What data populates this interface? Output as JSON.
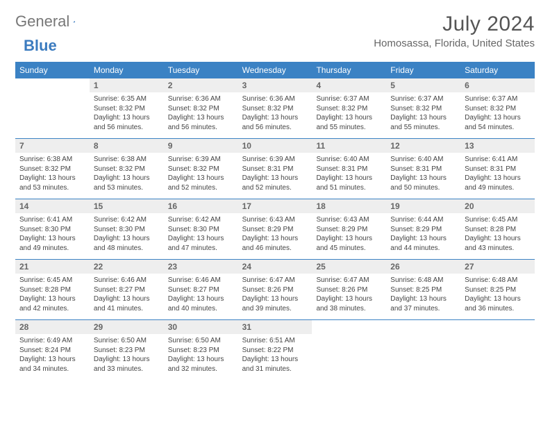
{
  "logo": {
    "general": "General",
    "blue": "Blue"
  },
  "header": {
    "title": "July 2024",
    "subtitle": "Homosassa, Florida, United States"
  },
  "colors": {
    "header_bg": "#3b82c4",
    "header_text": "#ffffff",
    "daynum_bg": "#eeeeee",
    "body_text": "#444444",
    "rule": "#3b82c4"
  },
  "layout": {
    "columns": 7,
    "rows": 5
  },
  "weekdays": [
    "Sunday",
    "Monday",
    "Tuesday",
    "Wednesday",
    "Thursday",
    "Friday",
    "Saturday"
  ],
  "days": [
    {
      "n": "",
      "empty": true
    },
    {
      "n": "1",
      "sunrise": "Sunrise: 6:35 AM",
      "sunset": "Sunset: 8:32 PM",
      "d1": "Daylight: 13 hours",
      "d2": "and 56 minutes."
    },
    {
      "n": "2",
      "sunrise": "Sunrise: 6:36 AM",
      "sunset": "Sunset: 8:32 PM",
      "d1": "Daylight: 13 hours",
      "d2": "and 56 minutes."
    },
    {
      "n": "3",
      "sunrise": "Sunrise: 6:36 AM",
      "sunset": "Sunset: 8:32 PM",
      "d1": "Daylight: 13 hours",
      "d2": "and 56 minutes."
    },
    {
      "n": "4",
      "sunrise": "Sunrise: 6:37 AM",
      "sunset": "Sunset: 8:32 PM",
      "d1": "Daylight: 13 hours",
      "d2": "and 55 minutes."
    },
    {
      "n": "5",
      "sunrise": "Sunrise: 6:37 AM",
      "sunset": "Sunset: 8:32 PM",
      "d1": "Daylight: 13 hours",
      "d2": "and 55 minutes."
    },
    {
      "n": "6",
      "sunrise": "Sunrise: 6:37 AM",
      "sunset": "Sunset: 8:32 PM",
      "d1": "Daylight: 13 hours",
      "d2": "and 54 minutes."
    },
    {
      "n": "7",
      "sunrise": "Sunrise: 6:38 AM",
      "sunset": "Sunset: 8:32 PM",
      "d1": "Daylight: 13 hours",
      "d2": "and 53 minutes."
    },
    {
      "n": "8",
      "sunrise": "Sunrise: 6:38 AM",
      "sunset": "Sunset: 8:32 PM",
      "d1": "Daylight: 13 hours",
      "d2": "and 53 minutes."
    },
    {
      "n": "9",
      "sunrise": "Sunrise: 6:39 AM",
      "sunset": "Sunset: 8:32 PM",
      "d1": "Daylight: 13 hours",
      "d2": "and 52 minutes."
    },
    {
      "n": "10",
      "sunrise": "Sunrise: 6:39 AM",
      "sunset": "Sunset: 8:31 PM",
      "d1": "Daylight: 13 hours",
      "d2": "and 52 minutes."
    },
    {
      "n": "11",
      "sunrise": "Sunrise: 6:40 AM",
      "sunset": "Sunset: 8:31 PM",
      "d1": "Daylight: 13 hours",
      "d2": "and 51 minutes."
    },
    {
      "n": "12",
      "sunrise": "Sunrise: 6:40 AM",
      "sunset": "Sunset: 8:31 PM",
      "d1": "Daylight: 13 hours",
      "d2": "and 50 minutes."
    },
    {
      "n": "13",
      "sunrise": "Sunrise: 6:41 AM",
      "sunset": "Sunset: 8:31 PM",
      "d1": "Daylight: 13 hours",
      "d2": "and 49 minutes."
    },
    {
      "n": "14",
      "sunrise": "Sunrise: 6:41 AM",
      "sunset": "Sunset: 8:30 PM",
      "d1": "Daylight: 13 hours",
      "d2": "and 49 minutes."
    },
    {
      "n": "15",
      "sunrise": "Sunrise: 6:42 AM",
      "sunset": "Sunset: 8:30 PM",
      "d1": "Daylight: 13 hours",
      "d2": "and 48 minutes."
    },
    {
      "n": "16",
      "sunrise": "Sunrise: 6:42 AM",
      "sunset": "Sunset: 8:30 PM",
      "d1": "Daylight: 13 hours",
      "d2": "and 47 minutes."
    },
    {
      "n": "17",
      "sunrise": "Sunrise: 6:43 AM",
      "sunset": "Sunset: 8:29 PM",
      "d1": "Daylight: 13 hours",
      "d2": "and 46 minutes."
    },
    {
      "n": "18",
      "sunrise": "Sunrise: 6:43 AM",
      "sunset": "Sunset: 8:29 PM",
      "d1": "Daylight: 13 hours",
      "d2": "and 45 minutes."
    },
    {
      "n": "19",
      "sunrise": "Sunrise: 6:44 AM",
      "sunset": "Sunset: 8:29 PM",
      "d1": "Daylight: 13 hours",
      "d2": "and 44 minutes."
    },
    {
      "n": "20",
      "sunrise": "Sunrise: 6:45 AM",
      "sunset": "Sunset: 8:28 PM",
      "d1": "Daylight: 13 hours",
      "d2": "and 43 minutes."
    },
    {
      "n": "21",
      "sunrise": "Sunrise: 6:45 AM",
      "sunset": "Sunset: 8:28 PM",
      "d1": "Daylight: 13 hours",
      "d2": "and 42 minutes."
    },
    {
      "n": "22",
      "sunrise": "Sunrise: 6:46 AM",
      "sunset": "Sunset: 8:27 PM",
      "d1": "Daylight: 13 hours",
      "d2": "and 41 minutes."
    },
    {
      "n": "23",
      "sunrise": "Sunrise: 6:46 AM",
      "sunset": "Sunset: 8:27 PM",
      "d1": "Daylight: 13 hours",
      "d2": "and 40 minutes."
    },
    {
      "n": "24",
      "sunrise": "Sunrise: 6:47 AM",
      "sunset": "Sunset: 8:26 PM",
      "d1": "Daylight: 13 hours",
      "d2": "and 39 minutes."
    },
    {
      "n": "25",
      "sunrise": "Sunrise: 6:47 AM",
      "sunset": "Sunset: 8:26 PM",
      "d1": "Daylight: 13 hours",
      "d2": "and 38 minutes."
    },
    {
      "n": "26",
      "sunrise": "Sunrise: 6:48 AM",
      "sunset": "Sunset: 8:25 PM",
      "d1": "Daylight: 13 hours",
      "d2": "and 37 minutes."
    },
    {
      "n": "27",
      "sunrise": "Sunrise: 6:48 AM",
      "sunset": "Sunset: 8:25 PM",
      "d1": "Daylight: 13 hours",
      "d2": "and 36 minutes."
    },
    {
      "n": "28",
      "sunrise": "Sunrise: 6:49 AM",
      "sunset": "Sunset: 8:24 PM",
      "d1": "Daylight: 13 hours",
      "d2": "and 34 minutes."
    },
    {
      "n": "29",
      "sunrise": "Sunrise: 6:50 AM",
      "sunset": "Sunset: 8:23 PM",
      "d1": "Daylight: 13 hours",
      "d2": "and 33 minutes."
    },
    {
      "n": "30",
      "sunrise": "Sunrise: 6:50 AM",
      "sunset": "Sunset: 8:23 PM",
      "d1": "Daylight: 13 hours",
      "d2": "and 32 minutes."
    },
    {
      "n": "31",
      "sunrise": "Sunrise: 6:51 AM",
      "sunset": "Sunset: 8:22 PM",
      "d1": "Daylight: 13 hours",
      "d2": "and 31 minutes."
    },
    {
      "n": "",
      "empty": true
    },
    {
      "n": "",
      "empty": true
    },
    {
      "n": "",
      "empty": true
    }
  ]
}
